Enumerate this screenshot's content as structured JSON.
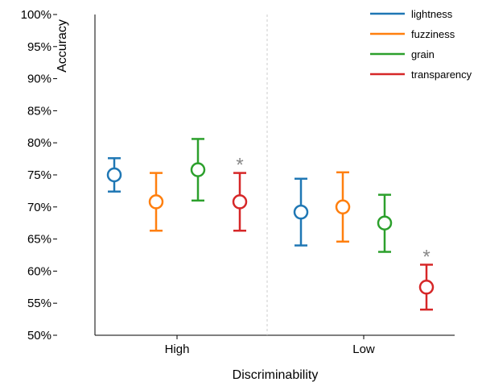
{
  "chart_data": {
    "type": "scatter",
    "title": "",
    "xlabel": "Discriminability",
    "ylabel": "Accuracy",
    "ylim": [
      50,
      100
    ],
    "yticks": [
      "50%",
      "55%",
      "60%",
      "65%",
      "70%",
      "75%",
      "80%",
      "85%",
      "90%",
      "95%",
      "100%"
    ],
    "categories": [
      "High",
      "Low"
    ],
    "legend_position": "top-right",
    "grid": false,
    "significance_marker": "*",
    "series": [
      {
        "name": "lightness",
        "color": "#1f77b4",
        "values": [
          75.0,
          69.2
        ],
        "ci_low": [
          72.4,
          64.0
        ],
        "ci_high": [
          77.6,
          74.4
        ],
        "significant": [
          false,
          false
        ]
      },
      {
        "name": "fuzziness",
        "color": "#ff7f0e",
        "values": [
          70.8,
          70.0
        ],
        "ci_low": [
          66.3,
          64.6
        ],
        "ci_high": [
          75.3,
          75.4
        ],
        "significant": [
          false,
          false
        ]
      },
      {
        "name": "grain",
        "color": "#2ca02c",
        "values": [
          75.8,
          67.5
        ],
        "ci_low": [
          71.0,
          63.0
        ],
        "ci_high": [
          80.6,
          71.9
        ],
        "significant": [
          false,
          false
        ]
      },
      {
        "name": "transparency",
        "color": "#d62728",
        "values": [
          70.8,
          57.5
        ],
        "ci_low": [
          66.3,
          54.0
        ],
        "ci_high": [
          75.3,
          61.0
        ],
        "significant": [
          true,
          true
        ]
      }
    ]
  }
}
